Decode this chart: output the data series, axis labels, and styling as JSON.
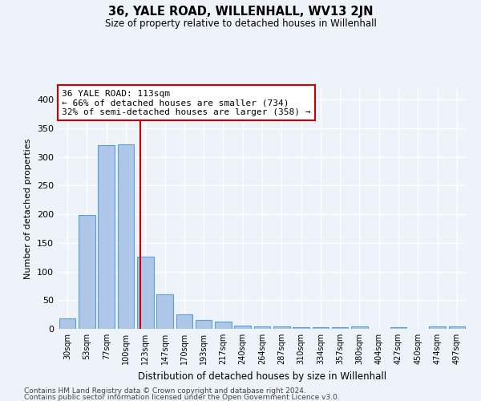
{
  "title": "36, YALE ROAD, WILLENHALL, WV13 2JN",
  "subtitle": "Size of property relative to detached houses in Willenhall",
  "xlabel": "Distribution of detached houses by size in Willenhall",
  "ylabel": "Number of detached properties",
  "categories": [
    "30sqm",
    "53sqm",
    "77sqm",
    "100sqm",
    "123sqm",
    "147sqm",
    "170sqm",
    "193sqm",
    "217sqm",
    "240sqm",
    "264sqm",
    "287sqm",
    "310sqm",
    "334sqm",
    "357sqm",
    "380sqm",
    "404sqm",
    "427sqm",
    "450sqm",
    "474sqm",
    "497sqm"
  ],
  "values": [
    18,
    199,
    320,
    322,
    126,
    60,
    25,
    16,
    13,
    6,
    4,
    4,
    3,
    3,
    3,
    4,
    0,
    3,
    0,
    4,
    4
  ],
  "bar_color": "#aec6e8",
  "bar_edge_color": "#5a9fd4",
  "vline_x": 3.75,
  "vline_color": "#cc0000",
  "annotation_title": "36 YALE ROAD: 113sqm",
  "annotation_line1": "← 66% of detached houses are smaller (734)",
  "annotation_line2": "32% of semi-detached houses are larger (358) →",
  "annotation_box_color": "#cc0000",
  "ylim": [
    0,
    420
  ],
  "yticks": [
    0,
    50,
    100,
    150,
    200,
    250,
    300,
    350,
    400
  ],
  "footer1": "Contains HM Land Registry data © Crown copyright and database right 2024.",
  "footer2": "Contains public sector information licensed under the Open Government Licence v3.0.",
  "background_color": "#eef2f9",
  "grid_color": "#ffffff"
}
